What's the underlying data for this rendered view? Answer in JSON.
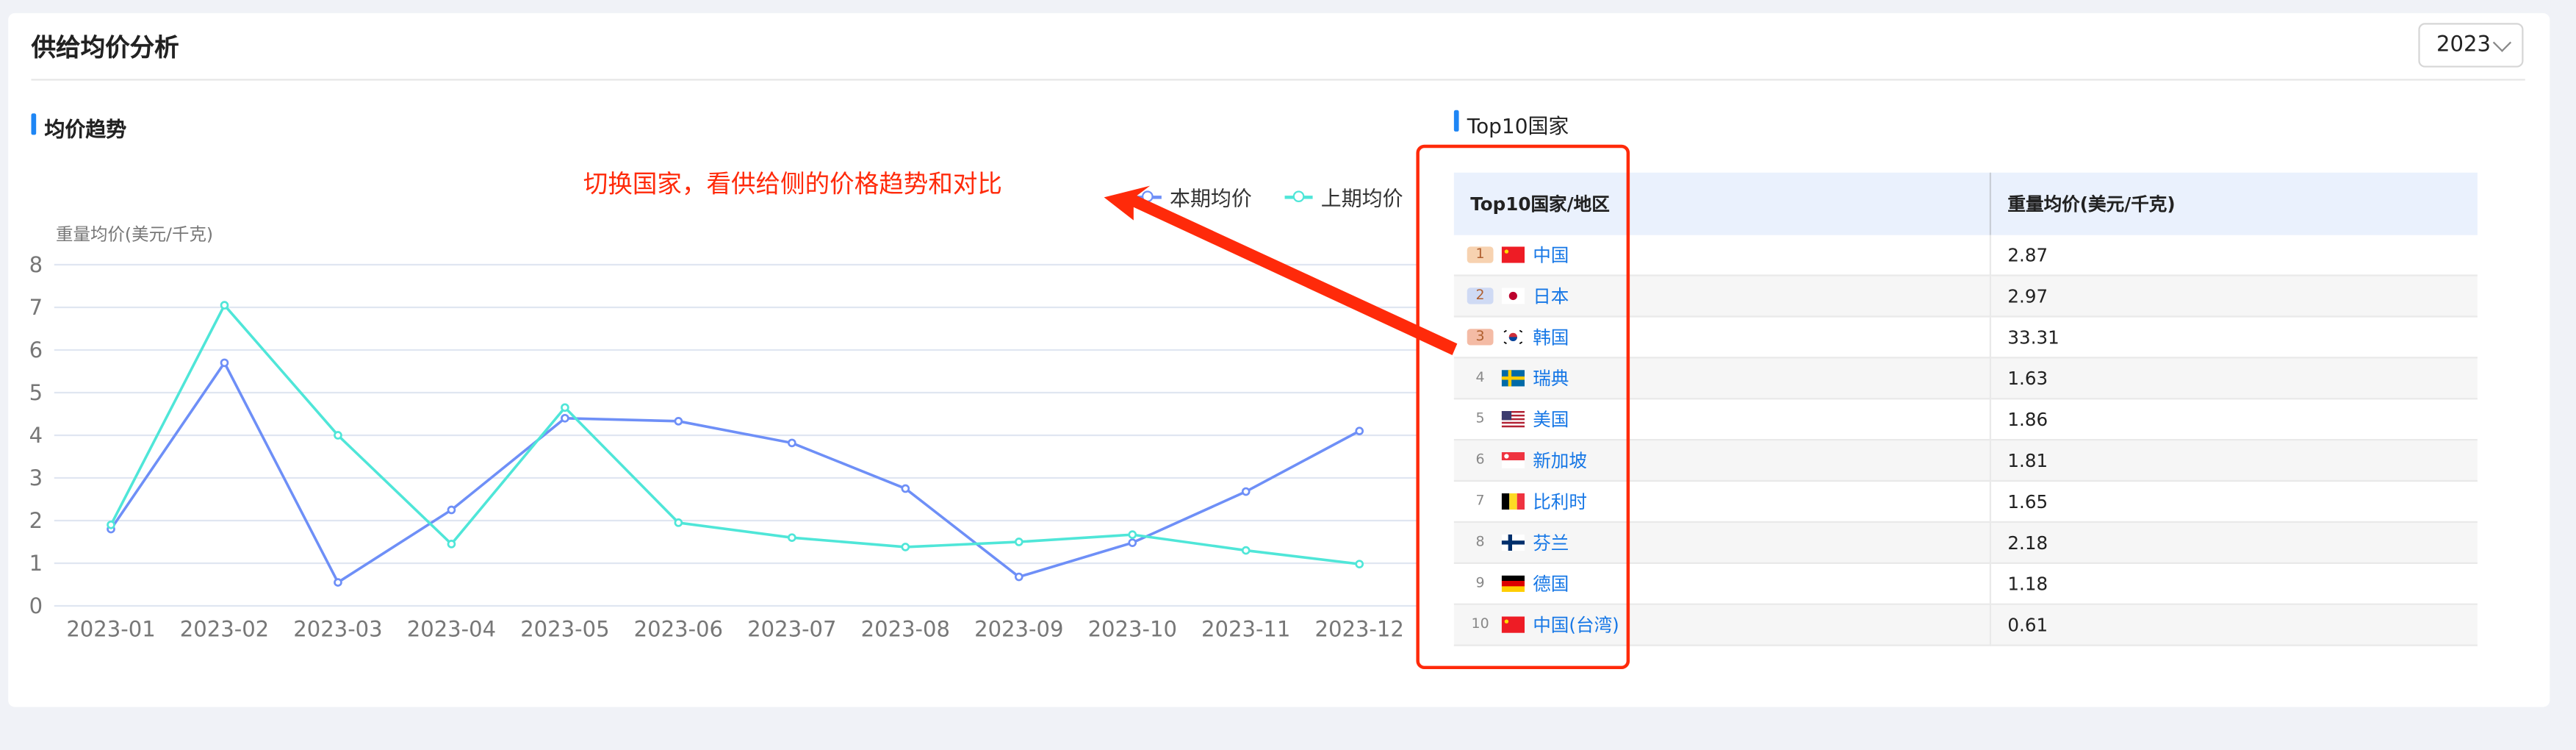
{
  "header": {
    "title": "供给均价分析",
    "year_select": {
      "value": "2023"
    }
  },
  "trend": {
    "section_title": "均价趋势",
    "annotation": "切换国家，看供给侧的价格趋势和对比"
  },
  "top10": {
    "section_title": "Top10国家",
    "columns": [
      "Top10国家/地区",
      "重量均价(美元/千克)"
    ],
    "rows": [
      {
        "rank": "1",
        "flag": "cn",
        "country": "中国",
        "price": "2.87"
      },
      {
        "rank": "2",
        "flag": "jp",
        "country": "日本",
        "price": "2.97"
      },
      {
        "rank": "3",
        "flag": "kr",
        "country": "韩国",
        "price": "33.31"
      },
      {
        "rank": "4",
        "flag": "se",
        "country": "瑞典",
        "price": "1.63"
      },
      {
        "rank": "5",
        "flag": "us",
        "country": "美国",
        "price": "1.86"
      },
      {
        "rank": "6",
        "flag": "sg",
        "country": "新加坡",
        "price": "1.81"
      },
      {
        "rank": "7",
        "flag": "be",
        "country": "比利时",
        "price": "1.65"
      },
      {
        "rank": "8",
        "flag": "fi",
        "country": "芬兰",
        "price": "2.18"
      },
      {
        "rank": "9",
        "flag": "de",
        "country": "德国",
        "price": "1.18"
      },
      {
        "rank": "10",
        "flag": "cn",
        "country": "中国(台湾)",
        "price": "0.61"
      }
    ]
  },
  "chart_data": {
    "type": "line",
    "ylabel": "重量均价(美元/千克)",
    "ylim": [
      0,
      8
    ],
    "yticks": [
      "0",
      "1",
      "2",
      "3",
      "4",
      "5",
      "6",
      "7",
      "8"
    ],
    "grid": true,
    "legend_position": "top-right",
    "categories": [
      "2023-01",
      "2023-02",
      "2023-03",
      "2023-04",
      "2023-05",
      "2023-06",
      "2023-07",
      "2023-08",
      "2023-09",
      "2023-10",
      "2023-11",
      "2023-12"
    ],
    "series": [
      {
        "name": "本期均价",
        "color": "#6e8ff7",
        "values": [
          1.8,
          5.7,
          0.55,
          2.25,
          4.4,
          4.33,
          3.82,
          2.75,
          0.68,
          1.48,
          2.68,
          4.1
        ]
      },
      {
        "name": "上期均价",
        "color": "#4fe6d8",
        "values": [
          1.9,
          7.05,
          4.0,
          1.45,
          4.65,
          1.95,
          1.6,
          1.38,
          1.5,
          1.67,
          1.3,
          0.98
        ]
      }
    ]
  },
  "colors": {
    "accent": "#1e86f5",
    "annotation": "#ff2a0a",
    "link": "#1677e6"
  }
}
